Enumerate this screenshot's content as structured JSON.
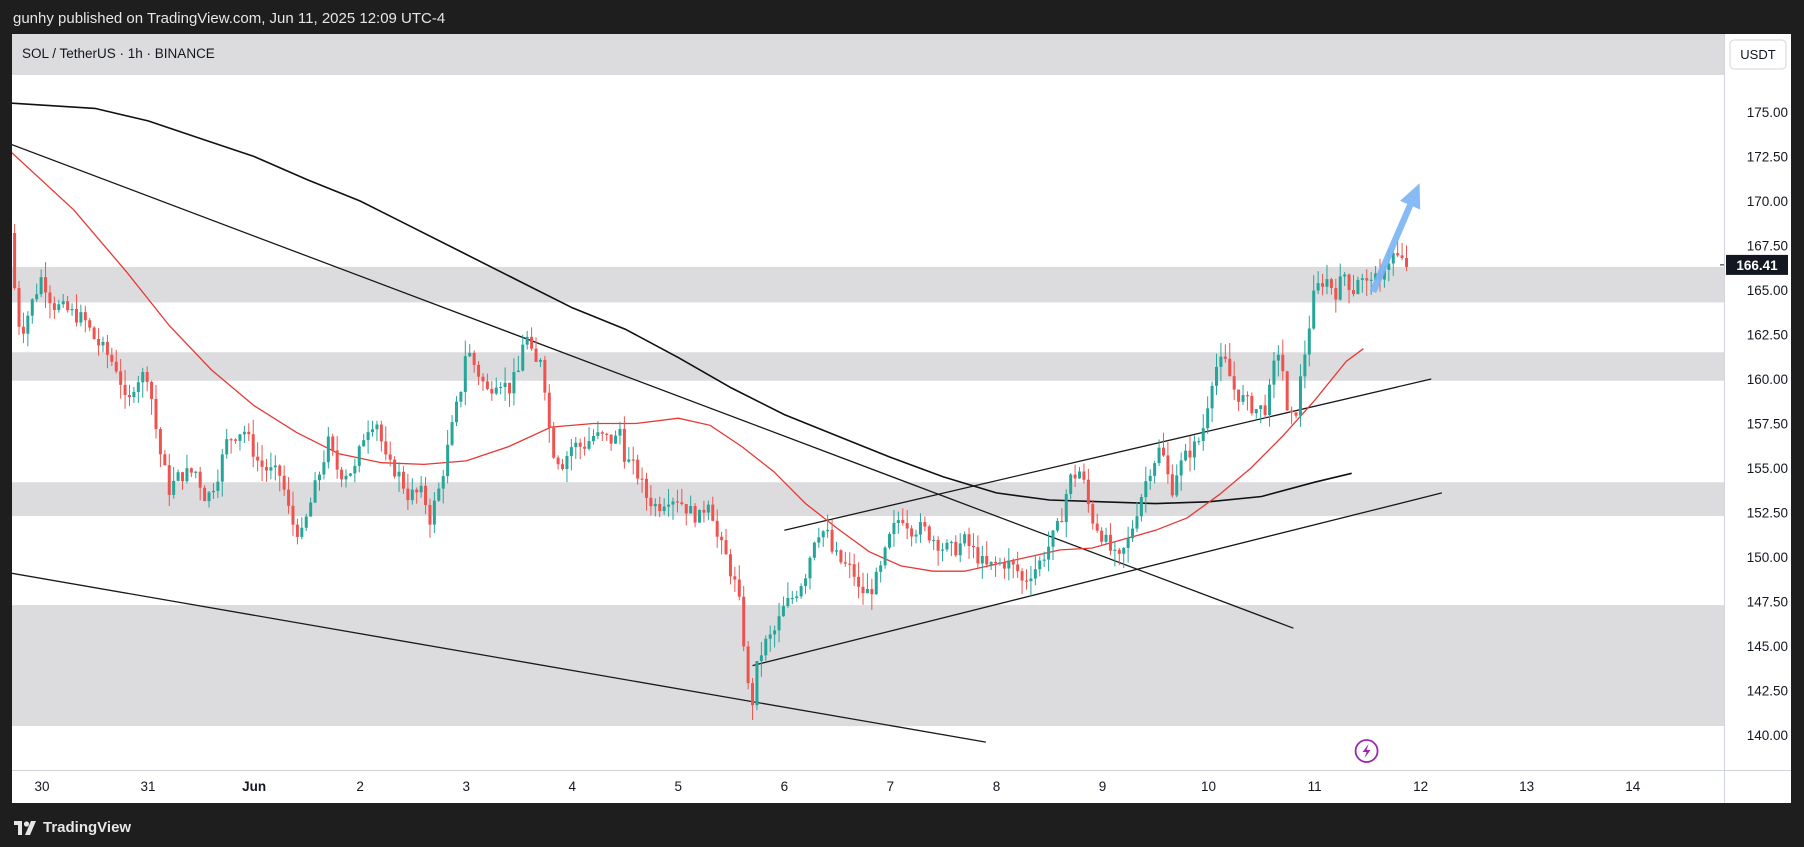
{
  "header": {
    "publish_line": "gunhy published on TradingView.com, Jun 11, 2025 12:09 UTC-4"
  },
  "footer": {
    "brand": "TradingView"
  },
  "colors": {
    "background": "#ffffff",
    "zone": "#dcdcdf",
    "bull": "#26a69a",
    "bear": "#ef5350",
    "ma_fast": "#e53935",
    "ma_slow": "#111111",
    "arrow": "#7ab4f5",
    "price_tag": "#131722",
    "event_icon": "#9c27b0"
  },
  "chart_data": {
    "type": "candlestick",
    "title": "SOL / TetherUS · 1h · BINANCE",
    "symbol": "SOL / TetherUS",
    "interval": "1h",
    "exchange": "BINANCE",
    "currency_label": "USDT",
    "last_price": 166.41,
    "last_price_label": "166.41",
    "y_ticks": [
      175,
      172.5,
      170,
      167.5,
      165,
      162.5,
      160,
      157.5,
      155,
      152.5,
      150,
      147.5,
      145,
      142.5,
      140
    ],
    "y_tick_labels": [
      "175.00",
      "172.50",
      "170.00",
      "167.50",
      "165.00",
      "162.50",
      "160.00",
      "157.50",
      "155.00",
      "152.50",
      "150.00",
      "147.50",
      "145.00",
      "142.50",
      "140.00"
    ],
    "x_ticks": [
      {
        "day": 0,
        "label": "30",
        "bold": false
      },
      {
        "day": 1,
        "label": "31",
        "bold": false
      },
      {
        "day": 2,
        "label": "Jun",
        "bold": true
      },
      {
        "day": 3,
        "label": "2",
        "bold": false
      },
      {
        "day": 4,
        "label": "3",
        "bold": false
      },
      {
        "day": 5,
        "label": "4",
        "bold": false
      },
      {
        "day": 6,
        "label": "5",
        "bold": false
      },
      {
        "day": 7,
        "label": "6",
        "bold": false
      },
      {
        "day": 8,
        "label": "7",
        "bold": false
      },
      {
        "day": 9,
        "label": "8",
        "bold": false
      },
      {
        "day": 10,
        "label": "9",
        "bold": false
      },
      {
        "day": 11,
        "label": "10",
        "bold": false
      },
      {
        "day": 12,
        "label": "11",
        "bold": false
      },
      {
        "day": 13,
        "label": "12",
        "bold": false
      },
      {
        "day": 14,
        "label": "13",
        "bold": false
      },
      {
        "day": 15,
        "label": "14",
        "bold": false
      }
    ],
    "zones": [
      {
        "low": 164.3,
        "high": 166.3
      },
      {
        "low": 159.9,
        "high": 161.5
      },
      {
        "low": 152.3,
        "high": 154.2
      },
      {
        "low": 140.5,
        "high": 147.3
      }
    ],
    "trendlines": [
      {
        "x1": -0.3,
        "y1": 173.2,
        "x2": 11.8,
        "y2": 146
      },
      {
        "x1": -0.3,
        "y1": 149.1,
        "x2": 8.9,
        "y2": 139.6
      },
      {
        "x1": 6.7,
        "y1": 143.9,
        "x2": 13.2,
        "y2": 153.6
      },
      {
        "x1": 7.0,
        "y1": 151.5,
        "x2": 13.1,
        "y2": 160
      }
    ],
    "ma_slow": [
      [
        -0.3,
        175.5
      ],
      [
        0.5,
        175.2
      ],
      [
        1,
        174.5
      ],
      [
        1.5,
        173.5
      ],
      [
        2,
        172.5
      ],
      [
        2.5,
        171.2
      ],
      [
        3,
        170
      ],
      [
        3.5,
        168.5
      ],
      [
        4,
        167
      ],
      [
        4.5,
        165.5
      ],
      [
        5,
        164
      ],
      [
        5.5,
        162.8
      ],
      [
        6,
        161.2
      ],
      [
        6.5,
        159.5
      ],
      [
        7,
        158
      ],
      [
        7.5,
        156.8
      ],
      [
        8,
        155.6
      ],
      [
        8.5,
        154.5
      ],
      [
        9,
        153.6
      ],
      [
        9.5,
        153.2
      ],
      [
        10,
        153.1
      ],
      [
        10.5,
        153
      ],
      [
        11,
        153.1
      ],
      [
        11.5,
        153.4
      ],
      [
        12,
        154.2
      ],
      [
        12.35,
        154.7
      ]
    ],
    "ma_fast": [
      [
        -0.3,
        172.8
      ],
      [
        0.3,
        169.5
      ],
      [
        0.8,
        166
      ],
      [
        1.2,
        163
      ],
      [
        1.6,
        160.5
      ],
      [
        2,
        158.5
      ],
      [
        2.4,
        157
      ],
      [
        2.8,
        155.8
      ],
      [
        3.2,
        155.3
      ],
      [
        3.6,
        155.2
      ],
      [
        4,
        155.4
      ],
      [
        4.4,
        156.2
      ],
      [
        4.8,
        157.3
      ],
      [
        5.2,
        157.5
      ],
      [
        5.6,
        157.5
      ],
      [
        6,
        157.8
      ],
      [
        6.3,
        157.4
      ],
      [
        6.6,
        156.2
      ],
      [
        6.9,
        154.8
      ],
      [
        7.2,
        153
      ],
      [
        7.5,
        151.6
      ],
      [
        7.8,
        150.3
      ],
      [
        8.1,
        149.5
      ],
      [
        8.4,
        149.2
      ],
      [
        8.7,
        149.2
      ],
      [
        9,
        149.6
      ],
      [
        9.3,
        150
      ],
      [
        9.6,
        150.4
      ],
      [
        9.9,
        150.5
      ],
      [
        10.2,
        151
      ],
      [
        10.5,
        151.5
      ],
      [
        10.8,
        152.2
      ],
      [
        11.1,
        153.5
      ],
      [
        11.4,
        155
      ],
      [
        11.7,
        156.8
      ],
      [
        12,
        158.8
      ],
      [
        12.3,
        161
      ],
      [
        12.46,
        161.7
      ]
    ],
    "price_path": [
      [
        -0.3,
        168.2
      ],
      [
        -0.25,
        164.5
      ],
      [
        -0.2,
        162.5
      ],
      [
        -0.1,
        164.2
      ],
      [
        0,
        165.8
      ],
      [
        0.1,
        164.2
      ],
      [
        0.25,
        163.8
      ],
      [
        0.4,
        163.3
      ],
      [
        0.5,
        162.2
      ],
      [
        0.6,
        161.5
      ],
      [
        0.72,
        160.5
      ],
      [
        0.8,
        158.2
      ],
      [
        0.88,
        160
      ],
      [
        1,
        160.3
      ],
      [
        1.1,
        156.2
      ],
      [
        1.2,
        153.8
      ],
      [
        1.3,
        154.6
      ],
      [
        1.45,
        154.8
      ],
      [
        1.55,
        153.2
      ],
      [
        1.65,
        154.5
      ],
      [
        1.75,
        156.6
      ],
      [
        1.9,
        157.2
      ],
      [
        2.05,
        155.2
      ],
      [
        2.15,
        154.8
      ],
      [
        2.25,
        154.6
      ],
      [
        2.35,
        152
      ],
      [
        2.45,
        151.2
      ],
      [
        2.55,
        153.4
      ],
      [
        2.7,
        156.4
      ],
      [
        2.8,
        154.7
      ],
      [
        2.95,
        154.9
      ],
      [
        3.05,
        157.2
      ],
      [
        3.15,
        157.8
      ],
      [
        3.25,
        155.2
      ],
      [
        3.35,
        154.8
      ],
      [
        3.45,
        153.5
      ],
      [
        3.6,
        153.6
      ],
      [
        3.65,
        152
      ],
      [
        3.75,
        153.9
      ],
      [
        3.85,
        156.8
      ],
      [
        3.95,
        159.5
      ],
      [
        4,
        161.8
      ],
      [
        4.1,
        160.5
      ],
      [
        4.2,
        159.3
      ],
      [
        4.3,
        160.1
      ],
      [
        4.4,
        159.4
      ],
      [
        4.5,
        160.5
      ],
      [
        4.55,
        162.9
      ],
      [
        4.6,
        161.6
      ],
      [
        4.65,
        160.7
      ],
      [
        4.7,
        161.3
      ],
      [
        4.75,
        159.3
      ],
      [
        4.8,
        156.2
      ],
      [
        4.9,
        155.2
      ],
      [
        5.0,
        156.3
      ],
      [
        5.1,
        156.2
      ],
      [
        5.2,
        156.8
      ],
      [
        5.3,
        156.7
      ],
      [
        5.4,
        156.5
      ],
      [
        5.45,
        157.2
      ],
      [
        5.5,
        155.5
      ],
      [
        5.6,
        154.9
      ],
      [
        5.7,
        153.4
      ],
      [
        5.8,
        152.8
      ],
      [
        5.9,
        153.4
      ],
      [
        6.0,
        153.3
      ],
      [
        6.1,
        152.6
      ],
      [
        6.2,
        152.2
      ],
      [
        6.3,
        153.5
      ],
      [
        6.35,
        151.3
      ],
      [
        6.45,
        150
      ],
      [
        6.55,
        148.2
      ],
      [
        6.6,
        146.5
      ],
      [
        6.65,
        142.8
      ],
      [
        6.7,
        141.9
      ],
      [
        6.73,
        143.5
      ],
      [
        6.8,
        145
      ],
      [
        6.9,
        145.7
      ],
      [
        7.0,
        147.2
      ],
      [
        7.1,
        147.9
      ],
      [
        7.2,
        149.1
      ],
      [
        7.3,
        151.5
      ],
      [
        7.4,
        151.4
      ],
      [
        7.45,
        150.3
      ],
      [
        7.55,
        149.6
      ],
      [
        7.65,
        149.2
      ],
      [
        7.7,
        148.1
      ],
      [
        7.8,
        148
      ],
      [
        7.9,
        149.1
      ],
      [
        8.0,
        151.2
      ],
      [
        8.1,
        152.4
      ],
      [
        8.2,
        151.6
      ],
      [
        8.3,
        151.6
      ],
      [
        8.4,
        151.1
      ],
      [
        8.5,
        150.5
      ],
      [
        8.6,
        150.4
      ],
      [
        8.7,
        150.9
      ],
      [
        8.8,
        150.2
      ],
      [
        8.9,
        149.4
      ],
      [
        9.0,
        149.6
      ],
      [
        9.1,
        149.7
      ],
      [
        9.2,
        149.2
      ],
      [
        9.25,
        148.5
      ],
      [
        9.3,
        149
      ],
      [
        9.4,
        149.6
      ],
      [
        9.5,
        150.7
      ],
      [
        9.6,
        151.9
      ],
      [
        9.65,
        153.4
      ],
      [
        9.7,
        154.4
      ],
      [
        9.8,
        154.9
      ],
      [
        9.85,
        153.3
      ],
      [
        9.9,
        152.2
      ],
      [
        10.0,
        151.2
      ],
      [
        10.1,
        150.1
      ],
      [
        10.15,
        149.7
      ],
      [
        10.25,
        151
      ],
      [
        10.35,
        153.2
      ],
      [
        10.45,
        155
      ],
      [
        10.55,
        156.2
      ],
      [
        10.65,
        153.7
      ],
      [
        10.7,
        154.8
      ],
      [
        10.8,
        155.8
      ],
      [
        10.9,
        156.4
      ],
      [
        10.95,
        157.3
      ],
      [
        11.05,
        160.6
      ],
      [
        11.15,
        161
      ],
      [
        11.25,
        159.3
      ],
      [
        11.35,
        158.7
      ],
      [
        11.45,
        158.3
      ],
      [
        11.55,
        158.4
      ],
      [
        11.65,
        161.8
      ],
      [
        11.7,
        160.5
      ],
      [
        11.75,
        157.4
      ],
      [
        11.82,
        158.1
      ],
      [
        11.9,
        161.2
      ],
      [
        12.0,
        164.9
      ],
      [
        12.1,
        165.7
      ],
      [
        12.2,
        164.9
      ],
      [
        12.3,
        166.1
      ],
      [
        12.35,
        164.6
      ],
      [
        12.4,
        165.8
      ],
      [
        12.5,
        165.2
      ],
      [
        12.55,
        166.3
      ],
      [
        12.6,
        164.7
      ],
      [
        12.65,
        166.4
      ],
      [
        12.75,
        167
      ],
      [
        12.85,
        166.4
      ],
      [
        12.89,
        166.41
      ]
    ],
    "annotations": [
      {
        "type": "arrow",
        "direction": "up",
        "from": [
          12.55,
          164.9
        ],
        "to": [
          12.99,
          171
        ]
      },
      {
        "type": "event-icon",
        "at": [
          12.49,
          139.1
        ]
      }
    ]
  }
}
